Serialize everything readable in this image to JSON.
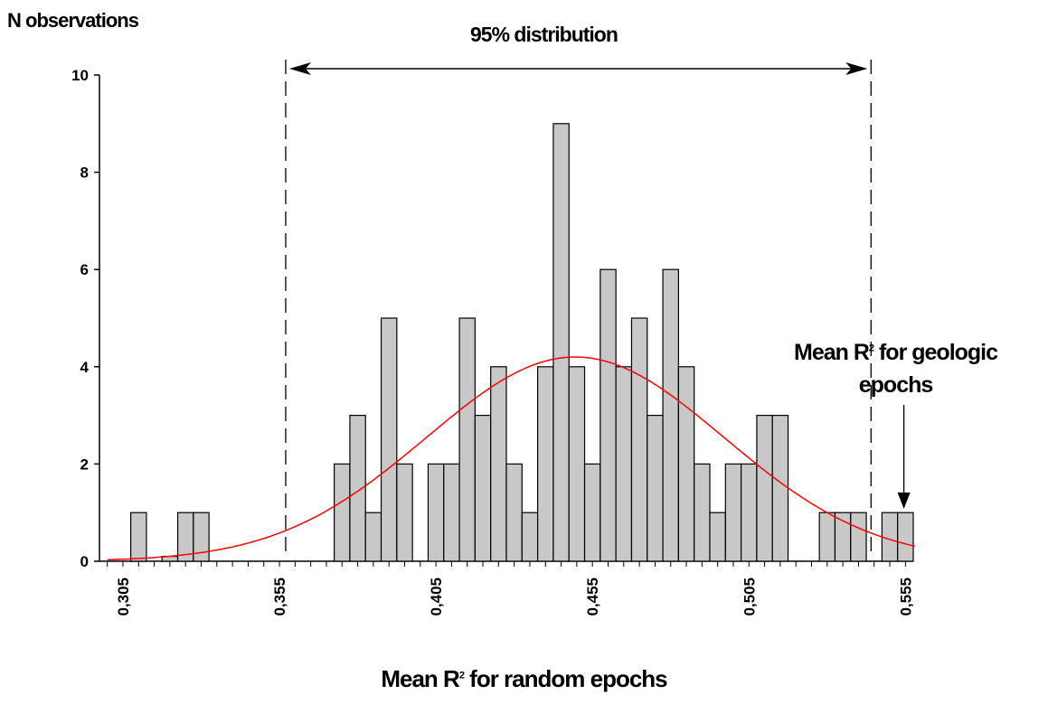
{
  "chart_data": {
    "type": "bar",
    "ylabel": "N observations",
    "xlabel_main": "Mean R",
    "xlabel_sup": "2",
    "xlabel_rest": " for random epochs",
    "ylim": [
      0,
      10
    ],
    "yticks": [
      "0",
      "2",
      "4",
      "6",
      "8",
      "10"
    ],
    "xlim": [
      0.2975,
      0.5575
    ],
    "xticks": [
      "0,305",
      "0,355",
      "0,405",
      "0,455",
      "0,505",
      "0,555"
    ],
    "bin_width": 0.005,
    "bins": [
      {
        "x": 0.31,
        "value": 1
      },
      {
        "x": 0.32,
        "value": 0.1
      },
      {
        "x": 0.325,
        "value": 1
      },
      {
        "x": 0.33,
        "value": 1
      },
      {
        "x": 0.375,
        "value": 2
      },
      {
        "x": 0.38,
        "value": 3
      },
      {
        "x": 0.385,
        "value": 1
      },
      {
        "x": 0.39,
        "value": 5
      },
      {
        "x": 0.395,
        "value": 2
      },
      {
        "x": 0.405,
        "value": 2
      },
      {
        "x": 0.41,
        "value": 2
      },
      {
        "x": 0.415,
        "value": 5
      },
      {
        "x": 0.42,
        "value": 3
      },
      {
        "x": 0.425,
        "value": 4
      },
      {
        "x": 0.43,
        "value": 2
      },
      {
        "x": 0.435,
        "value": 1
      },
      {
        "x": 0.44,
        "value": 4
      },
      {
        "x": 0.445,
        "value": 9
      },
      {
        "x": 0.45,
        "value": 4
      },
      {
        "x": 0.455,
        "value": 2
      },
      {
        "x": 0.46,
        "value": 6
      },
      {
        "x": 0.465,
        "value": 4
      },
      {
        "x": 0.47,
        "value": 5
      },
      {
        "x": 0.475,
        "value": 3
      },
      {
        "x": 0.48,
        "value": 6
      },
      {
        "x": 0.485,
        "value": 4
      },
      {
        "x": 0.49,
        "value": 2
      },
      {
        "x": 0.495,
        "value": 1
      },
      {
        "x": 0.5,
        "value": 2
      },
      {
        "x": 0.505,
        "value": 2
      },
      {
        "x": 0.51,
        "value": 3
      },
      {
        "x": 0.515,
        "value": 3
      },
      {
        "x": 0.53,
        "value": 1
      },
      {
        "x": 0.535,
        "value": 1
      },
      {
        "x": 0.54,
        "value": 1
      },
      {
        "x": 0.55,
        "value": 1
      },
      {
        "x": 0.555,
        "value": 1
      }
    ],
    "normal_fit": {
      "mean": 0.4495,
      "sd": 0.0475,
      "peak": 4.2,
      "color": "#ff0000"
    },
    "bar_color": "#c8c8c8",
    "bar_edge_color": "#000000",
    "interval": {
      "label": "95% distribution",
      "from": 0.357,
      "to": 0.544
    },
    "annotation": {
      "line1": "Mean R",
      "sup": "2",
      "line1_rest": " for geologic",
      "line2": "epochs",
      "points_to": 0.5545
    }
  }
}
